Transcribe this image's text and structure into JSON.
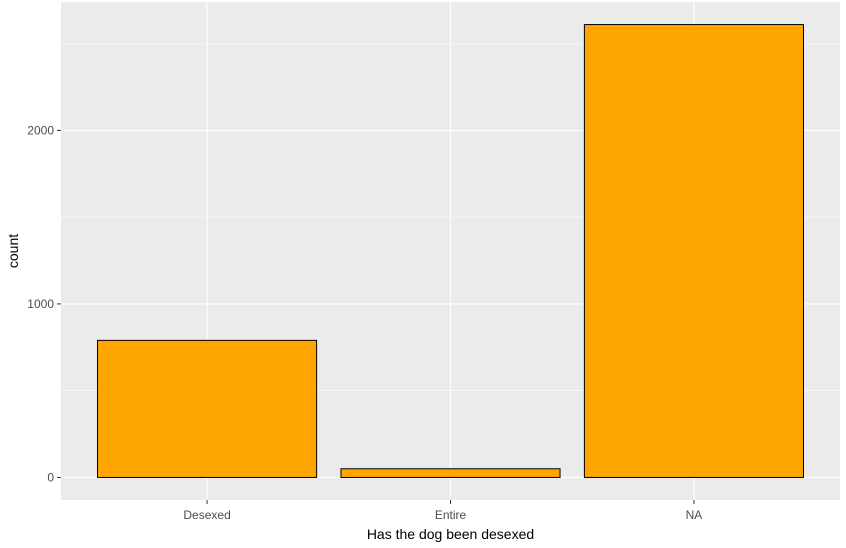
{
  "chart_data": {
    "type": "bar",
    "title": "",
    "xlabel": "Has the dog been desexed",
    "ylabel": "count",
    "categories": [
      "Desexed",
      "Entire",
      "NA"
    ],
    "values": [
      790,
      50,
      2610
    ],
    "ylim": [
      -130,
      2740
    ],
    "yticks": [
      0,
      1000,
      2000
    ],
    "ytick_labels": [
      "0",
      "1000",
      "2000"
    ],
    "grid": true,
    "legend": "none",
    "colors": {
      "bar_fill": "#FFA500",
      "bar_stroke": "#000000",
      "panel_background": "#EBEBEB",
      "grid": "#FFFFFF",
      "tick_label": "#4D4D4D",
      "tick_mark": "#333333"
    }
  }
}
